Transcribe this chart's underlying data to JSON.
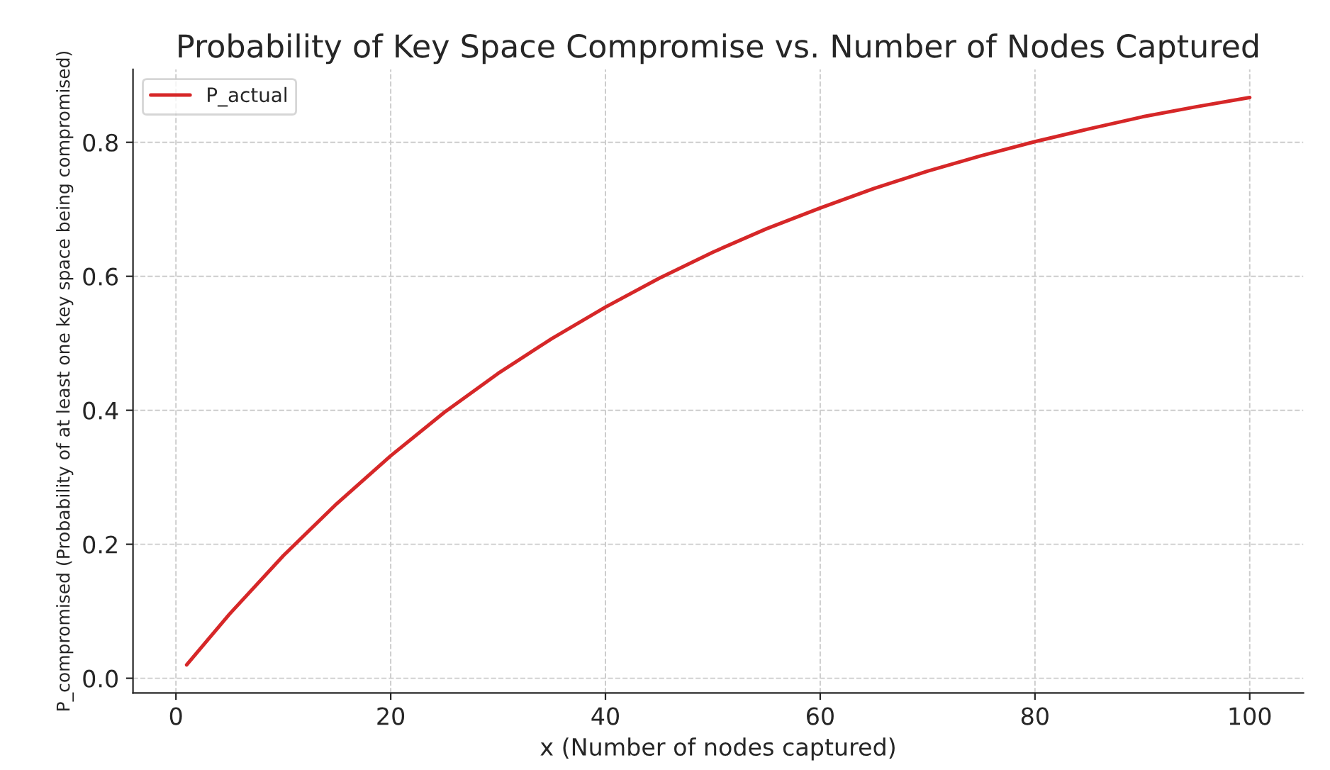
{
  "chart_data": {
    "type": "line",
    "title": "Probability of Key Space Compromise vs. Number of Nodes Captured",
    "xlabel": "x (Number of nodes captured)",
    "ylabel": "P_compromised (Probability of at least one key space being compromised)",
    "x": [
      1,
      5,
      10,
      15,
      20,
      25,
      30,
      35,
      40,
      45,
      50,
      55,
      60,
      65,
      70,
      75,
      80,
      85,
      90,
      95,
      100
    ],
    "series": [
      {
        "name": "P_actual",
        "color": "#d62728",
        "values": [
          0.02,
          0.096,
          0.183,
          0.261,
          0.332,
          0.397,
          0.455,
          0.507,
          0.554,
          0.597,
          0.636,
          0.671,
          0.702,
          0.731,
          0.757,
          0.78,
          0.801,
          0.82,
          0.838,
          0.853,
          0.867
        ]
      }
    ],
    "xlim": [
      -4,
      105
    ],
    "ylim": [
      -0.022,
      0.909
    ],
    "xticks": [
      0,
      20,
      40,
      60,
      80,
      100
    ],
    "yticks": [
      {
        "value": 0,
        "label": "0.0"
      },
      0.2,
      0.4,
      0.6,
      0.8
    ],
    "grid": true,
    "legend": "top left",
    "marker": "none",
    "line_style": "solid"
  }
}
